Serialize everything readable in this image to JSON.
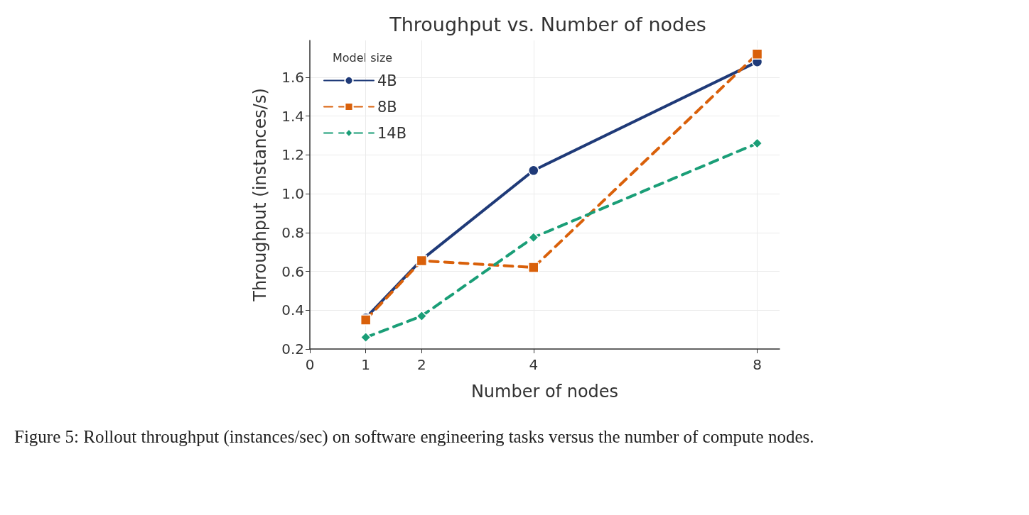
{
  "chart_data": {
    "type": "line",
    "title": "Throughput vs. Number of nodes",
    "xlabel": "Number of nodes",
    "ylabel": "Throughput (instances/s)",
    "legend_title": "Model size",
    "legend": "top left",
    "grid": true,
    "x": [
      1,
      2,
      4,
      8
    ],
    "xlim": [
      0,
      8.4
    ],
    "xticks": [
      0,
      1,
      2,
      4,
      8
    ],
    "ylim": [
      0.2,
      1.79
    ],
    "yticks": [
      0.2,
      0.4,
      0.6,
      0.8,
      {
        "value": 1,
        "label": "1.0"
      },
      1.2,
      1.4,
      1.6
    ],
    "series": [
      {
        "name": "4B",
        "color": "#1f3a78",
        "marker": "circle",
        "line_style": "solid",
        "values": [
          0.36,
          0.66,
          1.12,
          1.68
        ]
      },
      {
        "name": "8B",
        "color": "#d9600a",
        "marker": "square",
        "line_style": "dashed",
        "values": [
          0.35,
          0.655,
          0.62,
          1.72
        ]
      },
      {
        "name": "14B",
        "color": "#1a9e77",
        "marker": "diamond",
        "line_style": "dashed",
        "values": [
          0.26,
          0.37,
          0.775,
          1.26
        ]
      }
    ],
    "annotations": [
      "Figure 5: Rollout throughput (instances/sec) on software engineering tasks versus the number of compute nodes."
    ]
  }
}
